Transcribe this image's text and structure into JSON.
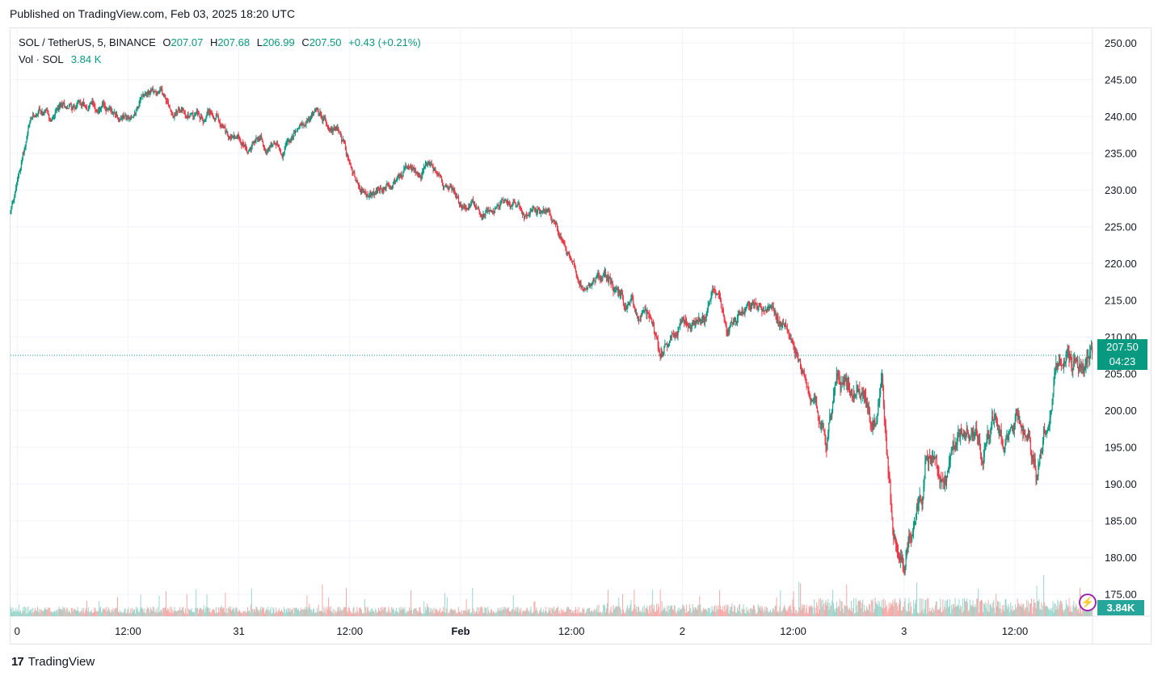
{
  "header": {
    "published": "Published on TradingView.com, Feb 03, 2025 18:20 UTC"
  },
  "legend": {
    "symbol": "SOL / TetherUS, 5, BINANCE",
    "o_label": "O",
    "o": "207.07",
    "h_label": "H",
    "h": "207.68",
    "l_label": "L",
    "l": "206.99",
    "c_label": "C",
    "c": "207.50",
    "change": "+0.43 (+0.21%)",
    "vol_label": "Vol · SOL",
    "vol": "3.84 K"
  },
  "price_label": {
    "price": "207.50",
    "countdown": "04:23"
  },
  "volume_label": "3.84K",
  "brand": {
    "name": "TradingView",
    "logo": "17"
  },
  "colors": {
    "up": "#089981",
    "down": "#f23645",
    "vol_up": "#9ad6cc",
    "vol_down": "#f7a9a7",
    "grid": "#f0f3fa"
  },
  "chart_data": {
    "type": "candlestick",
    "title": "SOL / TetherUS, 5, BINANCE",
    "ylim": [
      172,
      252
    ],
    "y_ticks": [
      "250.00",
      "245.00",
      "240.00",
      "235.00",
      "230.00",
      "225.00",
      "220.00",
      "215.00",
      "210.00",
      "205.00",
      "200.00",
      "195.00",
      "190.00",
      "185.00",
      "180.00",
      "175.00"
    ],
    "y_tick_values": [
      250,
      245,
      240,
      235,
      230,
      225,
      220,
      215,
      210,
      205,
      200,
      195,
      190,
      185,
      180,
      175
    ],
    "x_ticks": [
      "0",
      "12:00",
      "31",
      "12:00",
      "Feb",
      "12:00",
      "2",
      "12:00",
      "3",
      "12:00"
    ],
    "x_tick_values": [
      0,
      0.5,
      1,
      1.5,
      2,
      2.5,
      3,
      3.5,
      4,
      4.5
    ],
    "x_range_days": [
      -0.03,
      4.85
    ],
    "last_price": 207.5,
    "price_path_days": [
      -0.03,
      0.0,
      0.05,
      0.1,
      0.15,
      0.2,
      0.3,
      0.4,
      0.5,
      0.6,
      0.65,
      0.7,
      0.8,
      0.9,
      0.95,
      1.0,
      1.05,
      1.1,
      1.2,
      1.3,
      1.35,
      1.45,
      1.55,
      1.6,
      1.7,
      1.75,
      1.8,
      1.85,
      1.95,
      2.0,
      2.05,
      2.1,
      2.2,
      2.3,
      2.4,
      2.5,
      2.55,
      2.65,
      2.75,
      2.85,
      2.9,
      3.0,
      3.1,
      3.15,
      3.2,
      3.3,
      3.4,
      3.45,
      3.5,
      3.55,
      3.6,
      3.65,
      3.7,
      3.75,
      3.8,
      3.85,
      3.9,
      3.95,
      4.0,
      4.05,
      4.08,
      4.1,
      4.15,
      4.2,
      4.25,
      4.3,
      4.35,
      4.4,
      4.45,
      4.5,
      4.55,
      4.6,
      4.65,
      4.7,
      4.73,
      4.76,
      4.8,
      4.85
    ],
    "price_path_values": [
      227,
      231,
      238,
      241,
      239,
      241,
      242,
      241,
      240,
      244,
      243,
      241,
      240,
      241,
      237,
      237,
      236,
      237,
      235,
      240,
      241,
      238,
      230,
      229,
      231,
      233,
      232,
      233,
      230,
      228,
      228,
      227,
      229,
      226,
      227,
      220,
      217,
      218,
      214,
      212,
      208,
      213,
      213,
      216,
      210,
      213,
      214,
      212,
      209,
      205,
      201,
      196,
      205,
      203,
      203,
      197,
      202,
      183,
      178,
      187,
      188,
      196,
      192,
      191,
      197,
      198,
      194,
      199,
      195,
      200,
      197,
      191,
      200,
      208,
      208,
      207,
      206,
      207.5
    ]
  }
}
